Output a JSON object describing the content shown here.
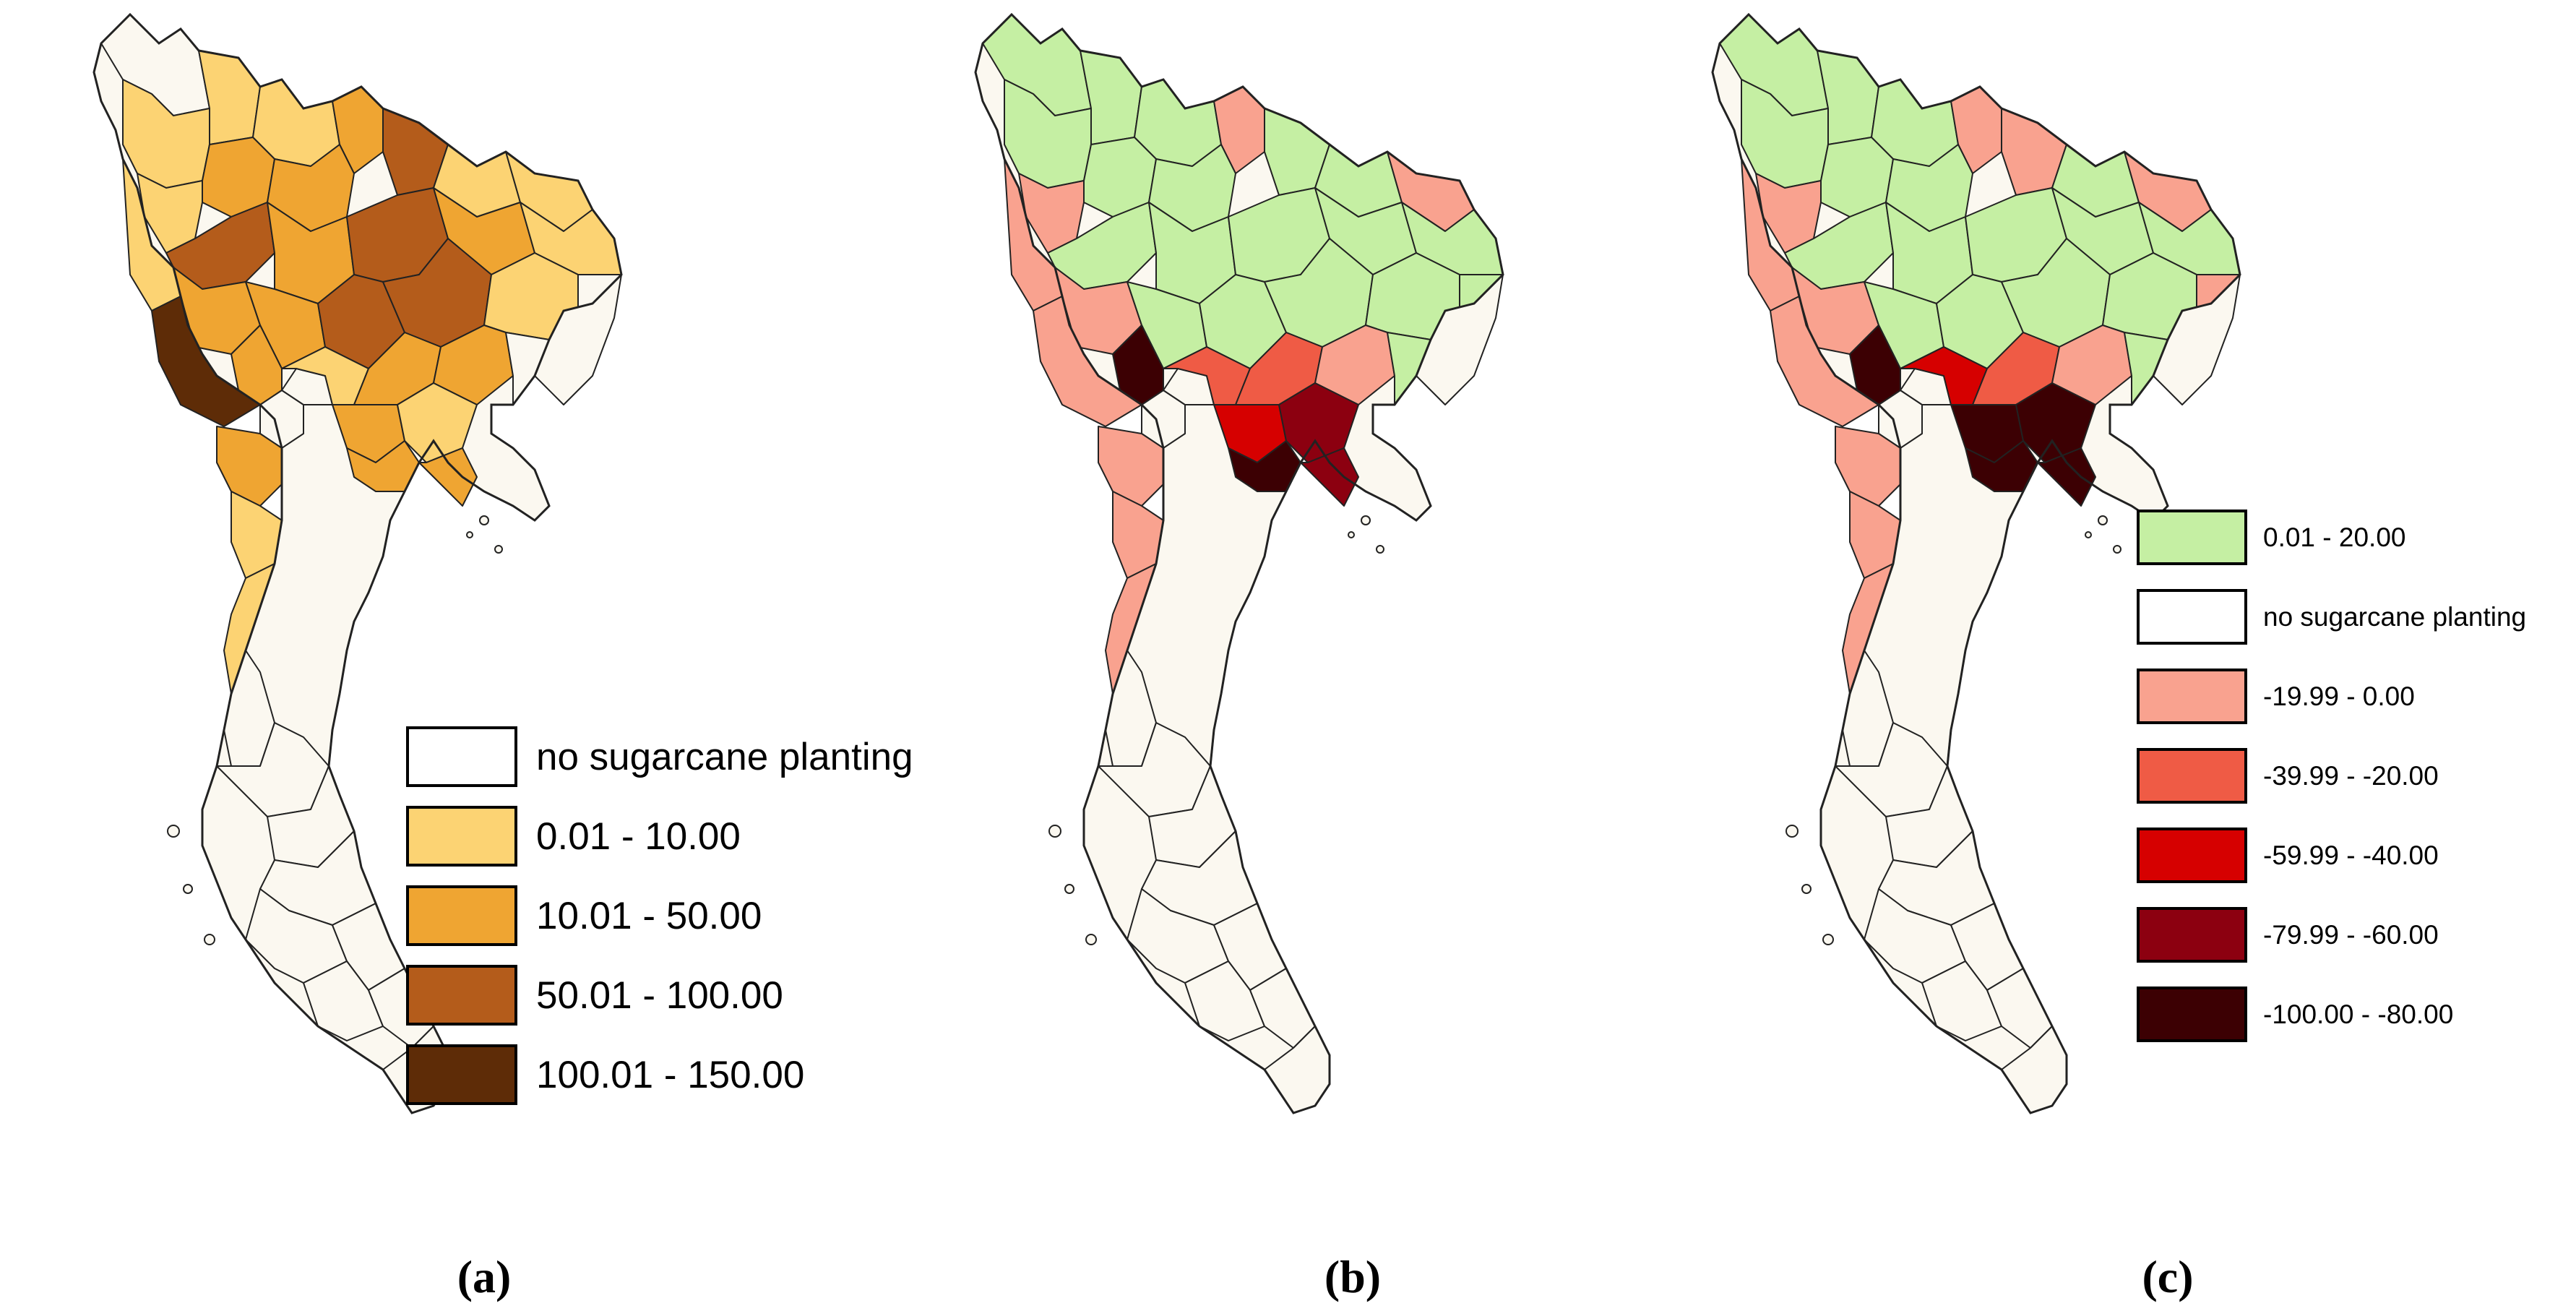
{
  "figure": {
    "panels": [
      {
        "id": "a",
        "caption": "(a)",
        "legend": [
          {
            "label": "no sugarcane planting",
            "color": "#ffffff"
          },
          {
            "label": "0.01 - 10.00",
            "color": "#fcd373"
          },
          {
            "label": "10.01 - 50.00",
            "color": "#efa532"
          },
          {
            "label": "50.01 - 100.00",
            "color": "#b45c1b"
          },
          {
            "label": "100.01 - 150.00",
            "color": "#5e2c07"
          }
        ]
      },
      {
        "id": "b",
        "caption": "(b)",
        "legend": []
      },
      {
        "id": "c",
        "caption": "(c)",
        "legend": [
          {
            "label": "0.01 - 20.00",
            "color": "#c5efa3"
          },
          {
            "label": "no sugarcane planting",
            "color": "#ffffff"
          },
          {
            "label": "-19.99 - 0.00",
            "color": "#f9a28f"
          },
          {
            "label": "-39.99 - -20.00",
            "color": "#ef5b45"
          },
          {
            "label": "-59.99 - -40.00",
            "color": "#d60000"
          },
          {
            "label": "-79.99 - -60.00",
            "color": "#8c0010"
          },
          {
            "label": "-100.00 - -80.00",
            "color": "#3c0003"
          }
        ]
      }
    ],
    "map_colors": {
      "no_planting_fill": "#fbf8f0",
      "border": "#222222"
    }
  }
}
